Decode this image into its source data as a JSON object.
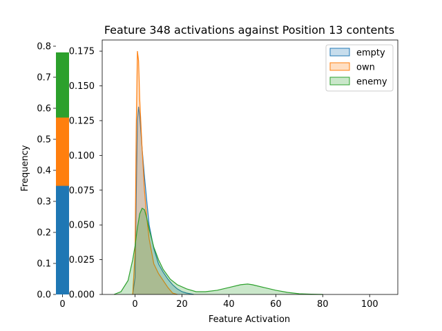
{
  "chart_data": [
    {
      "type": "bar",
      "orientation": "stacked-vertical",
      "categories": [
        "0"
      ],
      "series": [
        {
          "name": "empty",
          "values": [
            0.35
          ],
          "color": "#1f77b4"
        },
        {
          "name": "own",
          "values": [
            0.22
          ],
          "color": "#ff7f0e"
        },
        {
          "name": "enemy",
          "values": [
            0.21
          ],
          "color": "#2ca02c"
        }
      ],
      "ylabel": "Frequency",
      "ylim": [
        0,
        0.8
      ],
      "yticks": [
        "0.0",
        "0.1",
        "0.2",
        "0.3",
        "0.4",
        "0.5",
        "0.6",
        "0.7",
        "0.8"
      ],
      "xticks": [
        "0"
      ],
      "grid": false
    },
    {
      "type": "area",
      "title": "Feature 348 activations against Position 13 contents",
      "xlabel": "Feature Activation",
      "xlim": [
        -14,
        112
      ],
      "ylim": [
        0,
        0.183
      ],
      "xticks": [
        "0",
        "20",
        "40",
        "60",
        "80",
        "100"
      ],
      "yticks": [
        "0.000",
        "0.025",
        "0.050",
        "0.075",
        "0.100",
        "0.125",
        "0.150",
        "0.175"
      ],
      "legend": "top-right",
      "grid": false,
      "series": [
        {
          "name": "empty",
          "color": "#1f77b4",
          "x": [
            -1,
            0,
            0.5,
            1,
            1.5,
            2,
            3,
            4,
            5,
            6,
            8,
            10,
            12,
            14,
            16,
            18,
            20,
            22,
            25
          ],
          "y": [
            0,
            0.012,
            0.07,
            0.125,
            0.135,
            0.128,
            0.105,
            0.085,
            0.067,
            0.05,
            0.033,
            0.022,
            0.016,
            0.011,
            0.007,
            0.004,
            0.002,
            0.001,
            0
          ]
        },
        {
          "name": "own",
          "color": "#ff7f0e",
          "x": [
            -1,
            0,
            0.5,
            1,
            1.5,
            2,
            3,
            4,
            5,
            6,
            8,
            10,
            12,
            14,
            16,
            18
          ],
          "y": [
            0,
            0.03,
            0.12,
            0.175,
            0.168,
            0.14,
            0.105,
            0.075,
            0.055,
            0.04,
            0.022,
            0.015,
            0.01,
            0.005,
            0.001,
            0
          ]
        },
        {
          "name": "enemy",
          "color": "#2ca02c",
          "x": [
            -9,
            -6,
            -3,
            -1,
            0,
            1,
            2,
            3,
            4,
            5,
            6,
            8,
            10,
            12,
            15,
            18,
            22,
            26,
            30,
            35,
            40,
            45,
            48,
            50,
            55,
            60,
            65,
            70,
            75,
            80
          ],
          "y": [
            0,
            0.002,
            0.01,
            0.025,
            0.035,
            0.048,
            0.058,
            0.062,
            0.061,
            0.055,
            0.047,
            0.034,
            0.025,
            0.018,
            0.011,
            0.007,
            0.004,
            0.002,
            0.002,
            0.003,
            0.005,
            0.007,
            0.0075,
            0.007,
            0.005,
            0.003,
            0.0015,
            0.0005,
            0.0002,
            0
          ]
        }
      ]
    }
  ]
}
